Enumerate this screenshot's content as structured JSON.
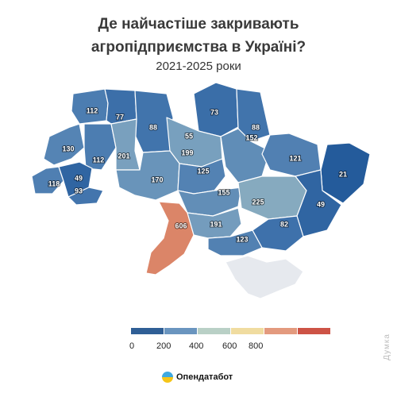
{
  "title_line1": "Де найчастіше закривають",
  "title_line2": "агропідприємства в Україні?",
  "subtitle": "2021-2025 роки",
  "regions": [
    {
      "name": "volyn",
      "value": "112"
    },
    {
      "name": "rivne",
      "value": "77"
    },
    {
      "name": "zhytomyr",
      "value": "88"
    },
    {
      "name": "kyiv-city",
      "value": "55"
    },
    {
      "name": "chernihiv",
      "value": "73"
    },
    {
      "name": "sumy",
      "value": "88"
    },
    {
      "name": "lviv",
      "value": "130"
    },
    {
      "name": "ternopil",
      "value": "112"
    },
    {
      "name": "khmelnytskyi",
      "value": "201"
    },
    {
      "name": "kyiv",
      "value": "199"
    },
    {
      "name": "poltava",
      "value": "152"
    },
    {
      "name": "kharkiv",
      "value": "121"
    },
    {
      "name": "luhansk",
      "value": "21"
    },
    {
      "name": "zakarpattia",
      "value": "118"
    },
    {
      "name": "ivano-frankivsk",
      "value": "49"
    },
    {
      "name": "chernivtsi",
      "value": "93"
    },
    {
      "name": "vinnytsia",
      "value": "170"
    },
    {
      "name": "cherkasy",
      "value": "125"
    },
    {
      "name": "kirovohrad",
      "value": "155"
    },
    {
      "name": "dnipropetrovsk",
      "value": "225"
    },
    {
      "name": "donetsk",
      "value": "49"
    },
    {
      "name": "odesa",
      "value": "606"
    },
    {
      "name": "mykolaiv",
      "value": "191"
    },
    {
      "name": "zaporizhzhia",
      "value": "82"
    },
    {
      "name": "kherson",
      "value": "123"
    },
    {
      "name": "crimea",
      "value": ""
    }
  ],
  "legend": {
    "colors": [
      "#2f5f96",
      "#6a95bf",
      "#b9d0c6",
      "#f0dca0",
      "#e39a7e",
      "#cd5346"
    ],
    "ticks": [
      "0",
      "200",
      "400",
      "600",
      "800"
    ]
  },
  "logo_text": "Опендатабот",
  "watermark": "Думка"
}
